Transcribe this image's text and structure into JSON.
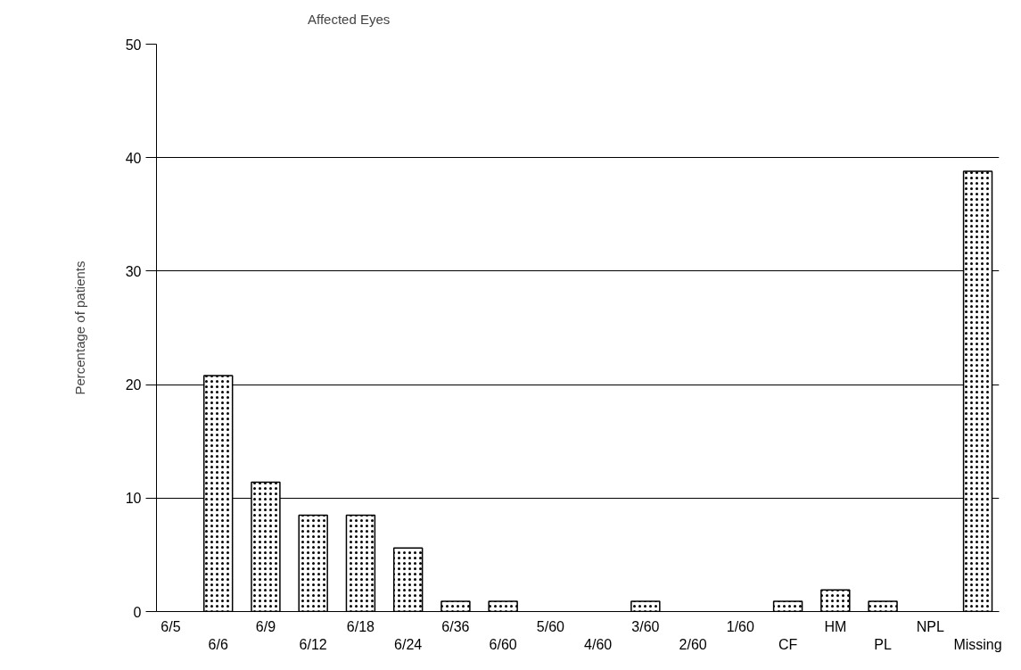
{
  "chart_data": {
    "type": "bar",
    "ylabel": "Percentage of patients",
    "categories": [
      "6/5",
      "6/6",
      "6/9",
      "6/12",
      "6/18",
      "6/24",
      "6/36",
      "6/60",
      "5/60",
      "4/60",
      "3/60",
      "2/60",
      "1/60",
      "CF",
      "HM",
      "PL",
      "NPL",
      "Missing"
    ],
    "series": [
      {
        "name": "Affected Eyes",
        "color": "#ffffff",
        "values": [
          0,
          20.8,
          11.4,
          8.5,
          8.5,
          5.6,
          0.9,
          0.9,
          0,
          0,
          0.9,
          0,
          0,
          0.9,
          1.9,
          0.9,
          0,
          38.8
        ]
      }
    ],
    "ylim": [
      0,
      50
    ],
    "yticks": [
      0,
      10,
      20,
      30,
      40,
      50
    ],
    "grid": "y",
    "legend": "top left"
  }
}
